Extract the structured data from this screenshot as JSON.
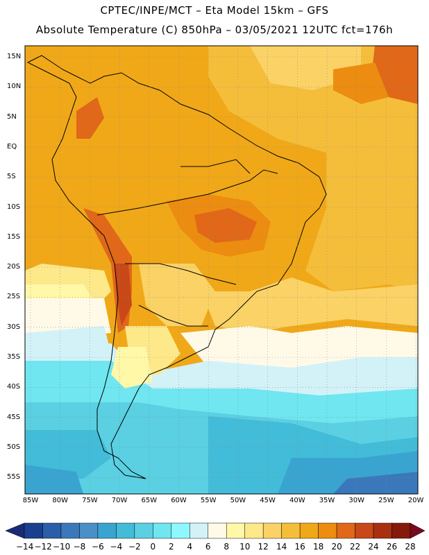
{
  "header": {
    "line1": "CPTEC/INPE/MCT –  Eta Model 15km – GFS",
    "line2": "Absolute Temperature (C) 850hPa – 03/05/2021 12UTC fct=176h"
  },
  "map": {
    "lat_labels": [
      "15N",
      "10N",
      "5N",
      "EQ",
      "5S",
      "10S",
      "15S",
      "20S",
      "25S",
      "30S",
      "35S",
      "40S",
      "45S",
      "50S",
      "55S"
    ],
    "lon_labels": [
      "85W",
      "80W",
      "75W",
      "70W",
      "65W",
      "60W",
      "55W",
      "50W",
      "45W",
      "40W",
      "35W",
      "30W",
      "25W",
      "20W"
    ],
    "grid": true
  },
  "colorbar": {
    "labels": [
      "-14",
      "-12",
      "-10",
      "-8",
      "-6",
      "-4",
      "-2",
      "0",
      "2",
      "4",
      "6",
      "8",
      "10",
      "12",
      "14",
      "16",
      "18",
      "20",
      "22",
      "24",
      "26",
      "28"
    ],
    "colors": [
      "#1a3f8f",
      "#2a5ea8",
      "#3a78bb",
      "#4a90c8",
      "#3aa4d0",
      "#42bcd8",
      "#5ad0e2",
      "#6fe6f0",
      "#8ff8ff",
      "#d2f2f8",
      "#fffae8",
      "#fff8a8",
      "#fde88a",
      "#fad266",
      "#f5be3a",
      "#f0a818",
      "#ec8c10",
      "#e06818",
      "#c84818",
      "#a83010",
      "#861a0a"
    ],
    "low_color": "#1a2a7a",
    "high_color": "#780a1e"
  }
}
